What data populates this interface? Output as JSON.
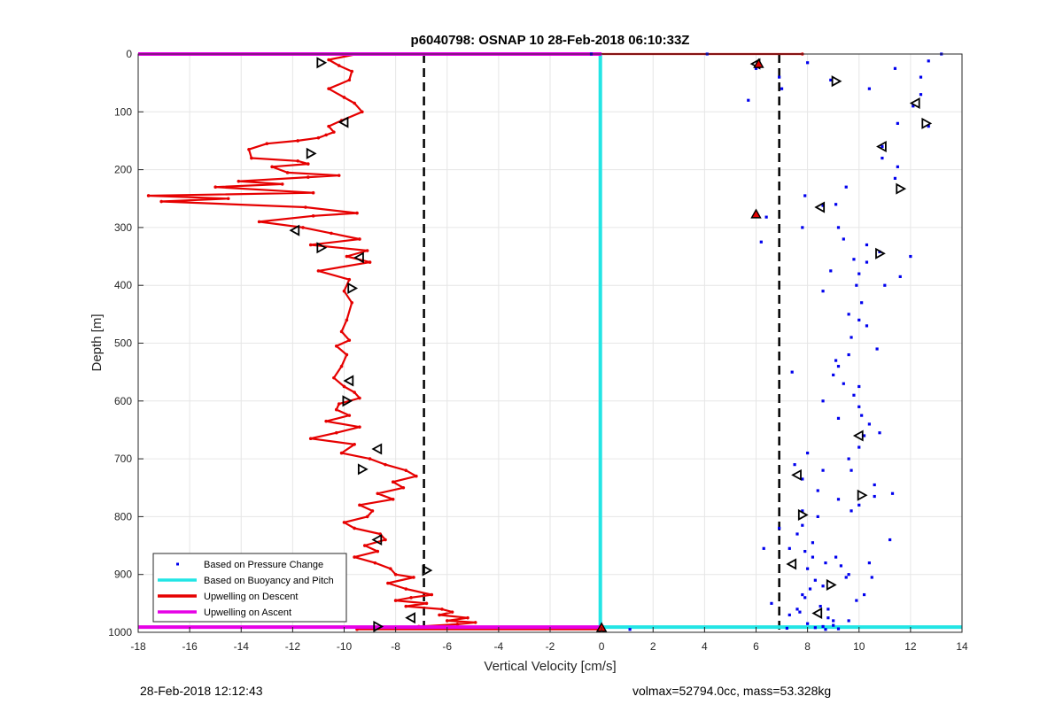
{
  "footer": {
    "left": "28-Feb-2018 12:12:43",
    "right": "volmax=52794.0cc, mass=53.328kg"
  },
  "chart_data": {
    "type": "line",
    "title": "p6040798: OSNAP 10 28-Feb-2018 06:10:33Z",
    "xlabel": "Vertical Velocity [cm/s]",
    "ylabel": "Depth [m]",
    "xlim": [
      -18,
      14
    ],
    "ylim": [
      1000,
      0
    ],
    "y_reversed": true,
    "xticks": [
      -18,
      -16,
      -14,
      -12,
      -10,
      -8,
      -6,
      -4,
      -2,
      0,
      2,
      4,
      6,
      8,
      10,
      12,
      14
    ],
    "yticks": [
      0,
      100,
      200,
      300,
      400,
      500,
      600,
      700,
      800,
      900,
      1000
    ],
    "grid": true,
    "legend_location": "bottom-left",
    "colors": {
      "pressure": "#0000ee",
      "buoyancy": "#22e5e5",
      "descent": "#e60000",
      "ascent": "#e600e6",
      "threshold": "#000000"
    },
    "legend": [
      {
        "label": "Based on Pressure Change",
        "key": "pressure",
        "style": "dot"
      },
      {
        "label": "Based on Buoyancy and Pitch",
        "key": "buoyancy",
        "style": "line"
      },
      {
        "label": "Upwelling on Descent",
        "key": "descent",
        "style": "line"
      },
      {
        "label": "Upwelling on Ascent",
        "key": "ascent",
        "style": "line"
      }
    ],
    "threshold_lines_x": [
      -6.9,
      6.9
    ],
    "series": [
      {
        "name": "Upwelling on Descent",
        "key": "descent",
        "x": [
          7.8,
          -9.5,
          -10.6,
          -10.2,
          -9.7,
          -9.8,
          -10.6,
          -10.0,
          -9.6,
          -9.3,
          -10.1,
          -10.6,
          -10.4,
          -10.7,
          -11.0,
          -11.8,
          -13.0,
          -13.7,
          -13.6,
          -11.8,
          -11.4,
          -12.8,
          -12.2,
          -10.2,
          -11.4,
          -14.1,
          -12.4,
          -15.0,
          -11.2,
          -17.6,
          -14.5,
          -17.1,
          -11.5,
          -9.5,
          -11.2,
          -13.3,
          -11.6,
          -10.5,
          -9.4,
          -11.3,
          -9.1,
          -9.9,
          -9.0,
          -11.0,
          -9.8,
          -10.0,
          -9.7,
          -9.9,
          -10.1,
          -9.8,
          -10.3,
          -9.9,
          -10.1,
          -10.4,
          -10.0,
          -9.6,
          -9.4,
          -10.2,
          -10.3,
          -9.8,
          -10.7,
          -9.4,
          -10.3,
          -11.3,
          -9.6,
          -10.1,
          -9.0,
          -8.4,
          -7.6,
          -7.2,
          -8.1,
          -7.7,
          -8.7,
          -8.1,
          -9.4,
          -8.9,
          -9.1,
          -10.0,
          -9.6,
          -8.6,
          -8.4,
          -9.2,
          -8.7,
          -9.6,
          -8.8,
          -8.2,
          -8.0,
          -7.3,
          -8.3,
          -7.6,
          -6.6,
          -7.4,
          -8.0,
          -6.8,
          -7.6,
          -6.2,
          -5.8,
          -6.3,
          -5.2,
          -6.0,
          -4.9,
          -5.6,
          -7.1,
          -8.0,
          -8.8,
          -9.5,
          0.0
        ],
        "y": [
          0,
          0,
          10,
          20,
          30,
          45,
          60,
          75,
          85,
          100,
          115,
          125,
          135,
          140,
          145,
          150,
          155,
          165,
          180,
          185,
          190,
          195,
          205,
          210,
          213,
          220,
          225,
          230,
          240,
          245,
          250,
          255,
          265,
          275,
          280,
          290,
          300,
          310,
          320,
          330,
          340,
          350,
          360,
          375,
          390,
          410,
          430,
          460,
          480,
          495,
          505,
          520,
          540,
          560,
          575,
          585,
          595,
          605,
          615,
          625,
          635,
          645,
          655,
          665,
          675,
          690,
          700,
          710,
          720,
          730,
          740,
          750,
          760,
          770,
          780,
          790,
          800,
          810,
          820,
          830,
          840,
          850,
          860,
          870,
          880,
          890,
          900,
          905,
          915,
          925,
          935,
          940,
          945,
          950,
          955,
          960,
          965,
          970,
          975,
          980,
          983,
          986,
          990,
          992,
          994,
          995,
          995
        ]
      },
      {
        "name": "Based on Buoyancy and Pitch",
        "key": "buoyancy",
        "x": [
          -0.05,
          -0.05,
          14
        ],
        "y": [
          0,
          991,
          991
        ]
      },
      {
        "name": "Upwelling on Ascent",
        "key": "ascent",
        "x": [
          -18,
          0,
          null,
          -18,
          0
        ],
        "y": [
          0,
          0,
          null,
          991,
          991
        ]
      },
      {
        "name": "Based on Pressure Change",
        "key": "pressure",
        "type": "scatter",
        "x": [
          6.0,
          8.9,
          10.4,
          12.1,
          12.7,
          10.9,
          11.4,
          9.5,
          8.6,
          6.4,
          7.8,
          9.4,
          10.8,
          10.3,
          10.0,
          9.9,
          10.1,
          10.0,
          9.7,
          9.6,
          9.2,
          9.0,
          9.4,
          9.8,
          10.0,
          10.1,
          10.4,
          10.2,
          10.0,
          9.6,
          8.6,
          7.8,
          8.4,
          9.2,
          10.0,
          10.6,
          9.7,
          8.4,
          7.8,
          7.6,
          8.2,
          7.9,
          8.7,
          9.6,
          11.2,
          10.4,
          8.6,
          7.8,
          6.6,
          7.6,
          7.3,
          9.0,
          8.6,
          8.0,
          8.8,
          7.9,
          8.3,
          8.0,
          9.1,
          11.4,
          12.7,
          8.0,
          12.4,
          10.9,
          11.5,
          9.2,
          6.2,
          9.1,
          7.9,
          10.3,
          9.8,
          8.9,
          8.6,
          11.6,
          12.0,
          11.0,
          9.6,
          10.3,
          10.7,
          9.1,
          7.4,
          10.0,
          8.6,
          9.2,
          10.8,
          8.0,
          7.5,
          9.7,
          10.6,
          11.3,
          7.8,
          6.9,
          6.3,
          8.2,
          9.3,
          10.5,
          8.1,
          9.9,
          7.7,
          8.8,
          7.3,
          9.5,
          10.2,
          8.5,
          9.6,
          9.0,
          8.3,
          7.2,
          8.7,
          9.2,
          -0.4,
          1.1,
          4.1,
          13.2,
          12.4,
          11.5,
          6.9,
          7.0,
          5.7
        ],
        "y": [
          25,
          45,
          60,
          90,
          125,
          160,
          215,
          230,
          262,
          282,
          300,
          320,
          342,
          360,
          380,
          400,
          430,
          460,
          490,
          520,
          540,
          555,
          570,
          590,
          610,
          625,
          640,
          660,
          680,
          700,
          720,
          735,
          755,
          770,
          780,
          765,
          790,
          800,
          815,
          830,
          845,
          860,
          880,
          900,
          840,
          880,
          920,
          935,
          950,
          960,
          970,
          980,
          990,
          985,
          960,
          940,
          910,
          890,
          870,
          25,
          12,
          15,
          70,
          180,
          195,
          300,
          325,
          260,
          245,
          330,
          355,
          375,
          410,
          385,
          350,
          400,
          450,
          470,
          510,
          530,
          550,
          575,
          600,
          630,
          655,
          690,
          710,
          720,
          745,
          760,
          790,
          820,
          855,
          870,
          885,
          905,
          925,
          945,
          965,
          975,
          855,
          905,
          935,
          955,
          980,
          988,
          992,
          993,
          995,
          994,
          0,
          995,
          0,
          0,
          40,
          120,
          40,
          60,
          80
        ]
      }
    ],
    "markers_open_triangles": {
      "x": [
        -10.9,
        -10.0,
        -11.3,
        -11.9,
        -10.9,
        -9.4,
        -9.7,
        -9.8,
        -9.9,
        -8.7,
        -9.3,
        -8.7,
        -6.8,
        -7.4,
        -8.7,
        6.0,
        9.1,
        12.2,
        12.6,
        10.9,
        11.6,
        8.5,
        10.8,
        10.0,
        10.1,
        7.6,
        7.8,
        7.4,
        8.9,
        8.4
      ],
      "y": [
        15,
        118,
        172,
        305,
        335,
        352,
        405,
        565,
        600,
        683,
        718,
        840,
        893,
        975,
        990,
        17,
        47,
        85,
        120,
        160,
        233,
        265,
        345,
        660,
        763,
        728,
        797,
        882,
        918,
        967
      ]
    },
    "markers_filled_triangles": {
      "x": [
        6.1,
        6.0,
        0.0
      ],
      "y": [
        17,
        277,
        992
      ]
    }
  }
}
